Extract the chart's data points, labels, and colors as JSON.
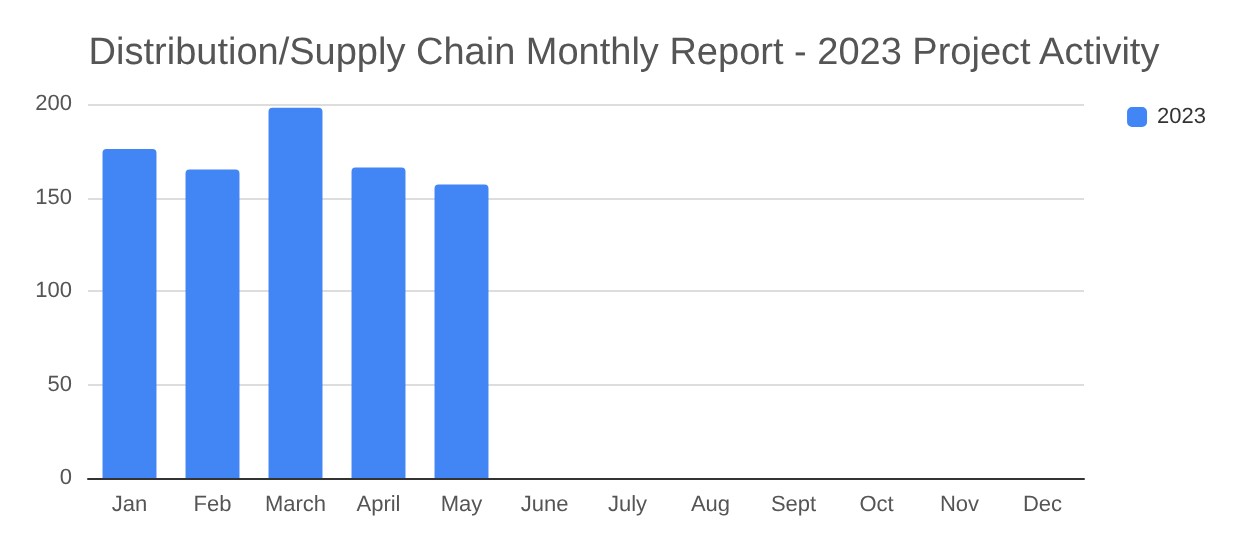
{
  "chart_data": {
    "type": "bar",
    "title": "Distribution/Supply Chain Monthly Report - 2023 Project Activity",
    "categories": [
      "Jan",
      "Feb",
      "March",
      "April",
      "May",
      "June",
      "July",
      "Aug",
      "Sept",
      "Oct",
      "Nov",
      "Dec"
    ],
    "series": [
      {
        "name": "2023",
        "color": "#4285f4",
        "values": [
          176,
          165,
          198,
          166,
          157,
          null,
          null,
          null,
          null,
          null,
          null,
          null
        ]
      }
    ],
    "ylim": [
      0,
      200
    ],
    "yticks": [
      0,
      50,
      100,
      150,
      200
    ],
    "grid": "y",
    "legend": "top right"
  }
}
